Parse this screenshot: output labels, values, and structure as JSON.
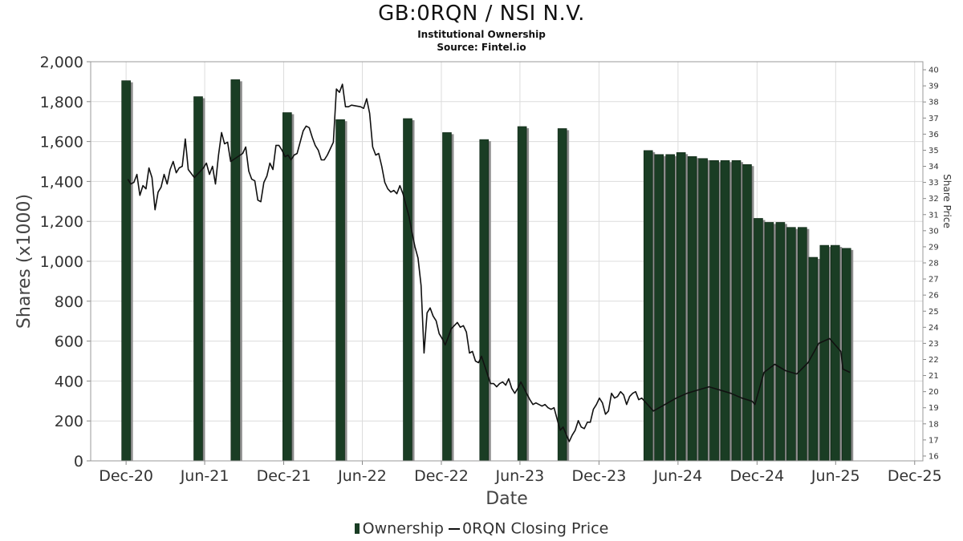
{
  "title": "GB:0RQN / NSI N.V.",
  "subtitle": "Institutional Ownership",
  "source": "Source: Fintel.io",
  "chart_data": {
    "type": "bar",
    "xlabel": "Date",
    "ylabel": "Shares (x1000)",
    "y2label": "Share Price",
    "ylim": [
      0,
      2000
    ],
    "y2lim": [
      15.7,
      40.5
    ],
    "y_ticks": [
      "0",
      "200",
      "400",
      "600",
      "800",
      "1,000",
      "1,200",
      "1,400",
      "1,600",
      "1,800",
      "2,000"
    ],
    "y2_ticks": [
      "16",
      "17",
      "18",
      "19",
      "20",
      "21",
      "22",
      "23",
      "24",
      "25",
      "26",
      "27",
      "28",
      "29",
      "30",
      "31",
      "32",
      "33",
      "34",
      "35",
      "36",
      "37",
      "38",
      "39",
      "40"
    ],
    "x_ticks": [
      {
        "date": "2020-12-01",
        "label": "Dec-20"
      },
      {
        "date": "2021-06-01",
        "label": "Jun-21"
      },
      {
        "date": "2021-12-01",
        "label": "Dec-21"
      },
      {
        "date": "2022-06-01",
        "label": "Jun-22"
      },
      {
        "date": "2022-12-01",
        "label": "Dec-22"
      },
      {
        "date": "2023-06-01",
        "label": "Jun-23"
      },
      {
        "date": "2023-12-01",
        "label": "Dec-23"
      },
      {
        "date": "2024-06-01",
        "label": "Jun-24"
      },
      {
        "date": "2024-12-01",
        "label": "Dec-24"
      },
      {
        "date": "2025-06-01",
        "label": "Jun-25"
      },
      {
        "date": "2025-12-01",
        "label": "Dec-25"
      }
    ],
    "xlim": [
      "2020-09-10",
      "2025-12-20"
    ],
    "grid": true,
    "legend_position": "bottom",
    "series": [
      {
        "name": "Ownership",
        "color": "#1a3d24",
        "points": [
          {
            "x": "2020-12-01",
            "y": 1905
          },
          {
            "x": "2021-05-17",
            "y": 1825
          },
          {
            "x": "2021-08-11",
            "y": 1910
          },
          {
            "x": "2021-12-09",
            "y": 1745
          },
          {
            "x": "2022-04-11",
            "y": 1710
          },
          {
            "x": "2022-09-14",
            "y": 1715
          },
          {
            "x": "2022-12-14",
            "y": 1645
          },
          {
            "x": "2023-03-10",
            "y": 1610
          },
          {
            "x": "2023-06-06",
            "y": 1675
          },
          {
            "x": "2023-09-07",
            "y": 1665
          },
          {
            "x": "2024-03-24",
            "y": 1555
          },
          {
            "x": "2024-04-18",
            "y": 1535
          },
          {
            "x": "2024-05-14",
            "y": 1535
          },
          {
            "x": "2024-06-08",
            "y": 1545
          },
          {
            "x": "2024-07-04",
            "y": 1525
          },
          {
            "x": "2024-07-29",
            "y": 1515
          },
          {
            "x": "2024-08-24",
            "y": 1505
          },
          {
            "x": "2024-09-18",
            "y": 1505
          },
          {
            "x": "2024-10-14",
            "y": 1505
          },
          {
            "x": "2024-11-08",
            "y": 1485
          },
          {
            "x": "2024-12-04",
            "y": 1215
          },
          {
            "x": "2024-12-29",
            "y": 1195
          },
          {
            "x": "2025-01-24",
            "y": 1195
          },
          {
            "x": "2025-02-18",
            "y": 1170
          },
          {
            "x": "2025-03-16",
            "y": 1170
          },
          {
            "x": "2025-04-10",
            "y": 1020
          },
          {
            "x": "2025-05-06",
            "y": 1080
          },
          {
            "x": "2025-05-31",
            "y": 1080
          },
          {
            "x": "2025-06-26",
            "y": 1065
          }
        ]
      },
      {
        "name": "0RQN Closing Price",
        "color": "#111111",
        "axis": "right",
        "points": [
          {
            "x": "2020-12-05",
            "y": 33.2
          },
          {
            "x": "2020-12-12",
            "y": 32.9
          },
          {
            "x": "2020-12-19",
            "y": 33.0
          },
          {
            "x": "2020-12-26",
            "y": 33.5
          },
          {
            "x": "2021-01-02",
            "y": 32.2
          },
          {
            "x": "2021-01-09",
            "y": 32.8
          },
          {
            "x": "2021-01-16",
            "y": 32.6
          },
          {
            "x": "2021-01-23",
            "y": 33.9
          },
          {
            "x": "2021-01-30",
            "y": 33.3
          },
          {
            "x": "2021-02-06",
            "y": 31.3
          },
          {
            "x": "2021-02-13",
            "y": 32.4
          },
          {
            "x": "2021-02-20",
            "y": 32.7
          },
          {
            "x": "2021-02-27",
            "y": 33.5
          },
          {
            "x": "2021-03-06",
            "y": 32.9
          },
          {
            "x": "2021-03-13",
            "y": 33.8
          },
          {
            "x": "2021-03-20",
            "y": 34.3
          },
          {
            "x": "2021-03-27",
            "y": 33.6
          },
          {
            "x": "2021-04-03",
            "y": 33.9
          },
          {
            "x": "2021-04-10",
            "y": 34.0
          },
          {
            "x": "2021-04-17",
            "y": 35.7
          },
          {
            "x": "2021-04-24",
            "y": 33.8
          },
          {
            "x": "2021-05-08",
            "y": 33.3
          },
          {
            "x": "2021-05-29",
            "y": 33.9
          },
          {
            "x": "2021-06-05",
            "y": 34.2
          },
          {
            "x": "2021-06-12",
            "y": 33.5
          },
          {
            "x": "2021-06-19",
            "y": 34.0
          },
          {
            "x": "2021-06-26",
            "y": 32.9
          },
          {
            "x": "2021-07-03",
            "y": 34.7
          },
          {
            "x": "2021-07-10",
            "y": 36.1
          },
          {
            "x": "2021-07-17",
            "y": 35.4
          },
          {
            "x": "2021-07-24",
            "y": 35.5
          },
          {
            "x": "2021-07-31",
            "y": 34.3
          },
          {
            "x": "2021-08-28",
            "y": 34.8
          },
          {
            "x": "2021-09-04",
            "y": 35.2
          },
          {
            "x": "2021-09-11",
            "y": 33.7
          },
          {
            "x": "2021-09-18",
            "y": 33.2
          },
          {
            "x": "2021-09-25",
            "y": 33.1
          },
          {
            "x": "2021-10-02",
            "y": 31.9
          },
          {
            "x": "2021-10-09",
            "y": 31.8
          },
          {
            "x": "2021-10-16",
            "y": 33.0
          },
          {
            "x": "2021-10-23",
            "y": 33.4
          },
          {
            "x": "2021-10-30",
            "y": 34.2
          },
          {
            "x": "2021-11-06",
            "y": 33.8
          },
          {
            "x": "2021-11-13",
            "y": 35.3
          },
          {
            "x": "2021-11-20",
            "y": 35.3
          },
          {
            "x": "2021-11-27",
            "y": 35.0
          },
          {
            "x": "2021-12-04",
            "y": 34.6
          },
          {
            "x": "2021-12-11",
            "y": 34.7
          },
          {
            "x": "2021-12-18",
            "y": 34.4
          },
          {
            "x": "2021-12-25",
            "y": 34.7
          },
          {
            "x": "2022-01-01",
            "y": 34.8
          },
          {
            "x": "2022-01-15",
            "y": 36.2
          },
          {
            "x": "2022-01-22",
            "y": 36.5
          },
          {
            "x": "2022-01-29",
            "y": 36.4
          },
          {
            "x": "2022-02-05",
            "y": 35.8
          },
          {
            "x": "2022-02-12",
            "y": 35.3
          },
          {
            "x": "2022-02-19",
            "y": 35.0
          },
          {
            "x": "2022-02-26",
            "y": 34.4
          },
          {
            "x": "2022-03-05",
            "y": 34.4
          },
          {
            "x": "2022-03-12",
            "y": 34.7
          },
          {
            "x": "2022-03-19",
            "y": 35.1
          },
          {
            "x": "2022-03-26",
            "y": 35.5
          },
          {
            "x": "2022-04-02",
            "y": 38.8
          },
          {
            "x": "2022-04-09",
            "y": 38.6
          },
          {
            "x": "2022-04-16",
            "y": 39.1
          },
          {
            "x": "2022-04-23",
            "y": 37.7
          },
          {
            "x": "2022-04-30",
            "y": 37.7
          },
          {
            "x": "2022-05-07",
            "y": 37.8
          },
          {
            "x": "2022-05-28",
            "y": 37.7
          },
          {
            "x": "2022-06-04",
            "y": 37.6
          },
          {
            "x": "2022-06-11",
            "y": 38.2
          },
          {
            "x": "2022-06-18",
            "y": 37.3
          },
          {
            "x": "2022-06-25",
            "y": 35.2
          },
          {
            "x": "2022-07-02",
            "y": 34.7
          },
          {
            "x": "2022-07-09",
            "y": 34.8
          },
          {
            "x": "2022-07-16",
            "y": 34.0
          },
          {
            "x": "2022-07-23",
            "y": 33.0
          },
          {
            "x": "2022-07-30",
            "y": 32.6
          },
          {
            "x": "2022-08-06",
            "y": 32.4
          },
          {
            "x": "2022-08-13",
            "y": 32.5
          },
          {
            "x": "2022-08-20",
            "y": 32.3
          },
          {
            "x": "2022-08-27",
            "y": 32.8
          },
          {
            "x": "2022-09-03",
            "y": 32.3
          },
          {
            "x": "2022-09-10",
            "y": 31.6
          },
          {
            "x": "2022-09-17",
            "y": 30.9
          },
          {
            "x": "2022-09-24",
            "y": 29.9
          },
          {
            "x": "2022-10-01",
            "y": 29.0
          },
          {
            "x": "2022-10-08",
            "y": 28.3
          },
          {
            "x": "2022-10-15",
            "y": 26.6
          },
          {
            "x": "2022-10-22",
            "y": 22.4
          },
          {
            "x": "2022-10-29",
            "y": 24.9
          },
          {
            "x": "2022-11-05",
            "y": 25.2
          },
          {
            "x": "2022-11-12",
            "y": 24.7
          },
          {
            "x": "2022-11-19",
            "y": 24.4
          },
          {
            "x": "2022-11-26",
            "y": 23.6
          },
          {
            "x": "2022-12-03",
            "y": 23.3
          },
          {
            "x": "2022-12-10",
            "y": 22.9
          },
          {
            "x": "2022-12-17",
            "y": 23.4
          },
          {
            "x": "2022-12-24",
            "y": 23.9
          },
          {
            "x": "2023-01-07",
            "y": 24.3
          },
          {
            "x": "2023-01-14",
            "y": 24.0
          },
          {
            "x": "2023-01-21",
            "y": 24.1
          },
          {
            "x": "2023-01-28",
            "y": 23.7
          },
          {
            "x": "2023-02-04",
            "y": 22.4
          },
          {
            "x": "2023-02-11",
            "y": 22.5
          },
          {
            "x": "2023-02-18",
            "y": 21.9
          },
          {
            "x": "2023-02-25",
            "y": 21.8
          },
          {
            "x": "2023-03-04",
            "y": 22.2
          },
          {
            "x": "2023-03-25",
            "y": 20.5
          },
          {
            "x": "2023-04-01",
            "y": 20.5
          },
          {
            "x": "2023-04-08",
            "y": 20.3
          },
          {
            "x": "2023-04-15",
            "y": 20.5
          },
          {
            "x": "2023-04-22",
            "y": 20.6
          },
          {
            "x": "2023-04-29",
            "y": 20.4
          },
          {
            "x": "2023-05-06",
            "y": 20.8
          },
          {
            "x": "2023-05-13",
            "y": 20.2
          },
          {
            "x": "2023-05-20",
            "y": 19.9
          },
          {
            "x": "2023-05-27",
            "y": 20.2
          },
          {
            "x": "2023-06-03",
            "y": 20.6
          },
          {
            "x": "2023-06-24",
            "y": 19.5
          },
          {
            "x": "2023-07-01",
            "y": 19.2
          },
          {
            "x": "2023-07-08",
            "y": 19.3
          },
          {
            "x": "2023-07-15",
            "y": 19.2
          },
          {
            "x": "2023-07-22",
            "y": 19.1
          },
          {
            "x": "2023-07-29",
            "y": 19.2
          },
          {
            "x": "2023-08-05",
            "y": 19.0
          },
          {
            "x": "2023-08-12",
            "y": 18.9
          },
          {
            "x": "2023-08-19",
            "y": 19.0
          },
          {
            "x": "2023-08-26",
            "y": 18.3
          },
          {
            "x": "2023-09-02",
            "y": 17.6
          },
          {
            "x": "2023-09-09",
            "y": 17.8
          },
          {
            "x": "2023-09-23",
            "y": 16.9
          },
          {
            "x": "2023-09-30",
            "y": 17.3
          },
          {
            "x": "2023-10-07",
            "y": 17.6
          },
          {
            "x": "2023-10-14",
            "y": 18.2
          },
          {
            "x": "2023-10-21",
            "y": 17.8
          },
          {
            "x": "2023-10-28",
            "y": 17.7
          },
          {
            "x": "2023-11-04",
            "y": 18.1
          },
          {
            "x": "2023-11-11",
            "y": 18.1
          },
          {
            "x": "2023-11-18",
            "y": 18.9
          },
          {
            "x": "2023-11-25",
            "y": 19.2
          },
          {
            "x": "2023-12-02",
            "y": 19.6
          },
          {
            "x": "2023-12-09",
            "y": 19.3
          },
          {
            "x": "2023-12-16",
            "y": 18.6
          },
          {
            "x": "2023-12-23",
            "y": 18.8
          },
          {
            "x": "2023-12-30",
            "y": 19.9
          },
          {
            "x": "2024-01-06",
            "y": 19.6
          },
          {
            "x": "2024-01-13",
            "y": 19.7
          },
          {
            "x": "2024-01-20",
            "y": 20.0
          },
          {
            "x": "2024-01-27",
            "y": 19.8
          },
          {
            "x": "2024-02-03",
            "y": 19.2
          },
          {
            "x": "2024-02-10",
            "y": 19.7
          },
          {
            "x": "2024-02-17",
            "y": 19.9
          },
          {
            "x": "2024-02-24",
            "y": 20.0
          },
          {
            "x": "2024-03-02",
            "y": 19.5
          },
          {
            "x": "2024-03-09",
            "y": 19.6
          },
          {
            "x": "2024-04-05",
            "y": 18.8
          },
          {
            "x": "2024-05-28",
            "y": 19.6
          },
          {
            "x": "2024-06-22",
            "y": 19.9
          },
          {
            "x": "2024-07-17",
            "y": 20.1
          },
          {
            "x": "2024-08-12",
            "y": 20.3
          },
          {
            "x": "2024-10-01",
            "y": 19.9
          },
          {
            "x": "2024-10-27",
            "y": 19.6
          },
          {
            "x": "2024-11-20",
            "y": 19.4
          },
          {
            "x": "2024-11-26",
            "y": 19.2
          },
          {
            "x": "2024-12-17",
            "y": 21.2
          },
          {
            "x": "2025-01-11",
            "y": 21.7
          },
          {
            "x": "2025-02-05",
            "y": 21.3
          },
          {
            "x": "2025-03-03",
            "y": 21.1
          },
          {
            "x": "2025-03-29",
            "y": 21.8
          },
          {
            "x": "2025-04-23",
            "y": 23.0
          },
          {
            "x": "2025-05-18",
            "y": 23.3
          },
          {
            "x": "2025-06-13",
            "y": 22.5
          },
          {
            "x": "2025-06-18",
            "y": 21.4
          },
          {
            "x": "2025-07-04",
            "y": 21.2
          }
        ]
      }
    ]
  }
}
